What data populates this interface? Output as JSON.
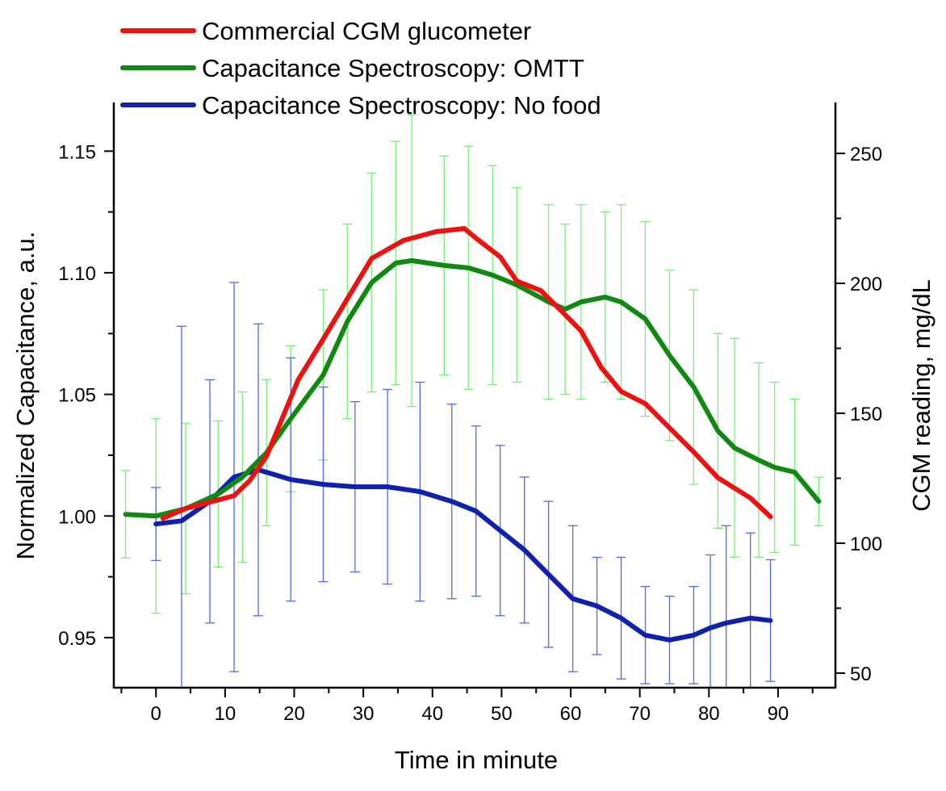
{
  "chart_data": {
    "type": "line",
    "xlabel": "Time in minute",
    "ylabel": "Normalized Capacitance, a.u.",
    "y2label": "CGM reading, mg/dL",
    "xlim": [
      -6.1,
      98.3
    ],
    "ylim": [
      0.9294,
      1.17
    ],
    "y2lim": [
      44.4,
      269.6
    ],
    "xticks": [
      0,
      10,
      20,
      30,
      40,
      50,
      60,
      70,
      80,
      90
    ],
    "yticks": [
      0.95,
      1.0,
      1.05,
      1.1,
      1.15
    ],
    "ytick_labels": [
      "0.95",
      "1.00",
      "1.05",
      "1.10",
      "1.15"
    ],
    "y2ticks": [
      50,
      100,
      150,
      200,
      250
    ],
    "grid": false,
    "legend_placement": "top-left, above plot",
    "series": [
      {
        "name": "Commercial CGM glucometer",
        "color": "#ee1111",
        "axis": "right",
        "x": [
          1,
          4.3,
          7.8,
          11.3,
          13.6,
          16,
          17.7,
          20.6,
          24.2,
          27.7,
          31.2,
          35.8,
          40.5,
          44.6,
          46.3,
          49.8,
          52.2,
          55.7,
          59.2,
          61.5,
          64.4,
          67.3,
          70.8,
          74.3,
          77.8,
          81.3,
          86,
          88.9
        ],
        "y": [
          109.6,
          113.4,
          115.8,
          118.3,
          124.2,
          133.5,
          144.4,
          163,
          178.6,
          194.1,
          209.6,
          216.5,
          219.9,
          221.1,
          217.4,
          210.2,
          200.9,
          197.2,
          187.9,
          181.7,
          167.7,
          158.4,
          153.7,
          144.4,
          135.1,
          125.2,
          117.4,
          110.2
        ]
      },
      {
        "name": "Capacitance Spectroscopy: OMTT",
        "color": "#118811",
        "error_color": "#77ee77",
        "axis": "left",
        "x": [
          -4.4,
          0,
          4.3,
          9,
          12.5,
          16,
          19.5,
          24.2,
          27.7,
          31.2,
          34.7,
          37,
          41.7,
          45.2,
          48.7,
          52.2,
          56.8,
          59.2,
          61.5,
          65,
          67.3,
          70.8,
          74.3,
          77.8,
          81.3,
          83.7,
          87.2,
          89.5,
          92.4,
          95.9
        ],
        "y": [
          1.0007,
          1.0,
          1.003,
          1.009,
          1.016,
          1.026,
          1.04,
          1.058,
          1.08,
          1.096,
          1.104,
          1.105,
          1.103,
          1.102,
          1.099,
          1.095,
          1.088,
          1.085,
          1.088,
          1.09,
          1.088,
          1.081,
          1.066,
          1.053,
          1.035,
          1.028,
          1.023,
          1.02,
          1.018,
          1.006
        ],
        "error": [
          0.018,
          0.04,
          0.035,
          0.03,
          0.035,
          0.03,
          0.03,
          0.035,
          0.04,
          0.045,
          0.05,
          0.06,
          0.045,
          0.05,
          0.045,
          0.04,
          0.04,
          0.035,
          0.04,
          0.035,
          0.04,
          0.04,
          0.035,
          0.04,
          0.04,
          0.045,
          0.04,
          0.035,
          0.03,
          0.01
        ]
      },
      {
        "name": "Capacitance Spectroscopy: No food",
        "color": "#1122aa",
        "error_color": "#5566ee",
        "axis": "left",
        "x": [
          0,
          3.7,
          7.8,
          11.3,
          14.8,
          19.5,
          24.2,
          28.8,
          33.5,
          38.2,
          42.8,
          46.3,
          49.8,
          53.3,
          56.8,
          60.3,
          63.8,
          67.3,
          70.8,
          74.3,
          77.8,
          80.2,
          82.5,
          86,
          88.9
        ],
        "y": [
          0.9967,
          0.998,
          1.006,
          1.016,
          1.019,
          1.015,
          1.013,
          1.012,
          1.012,
          1.01,
          1.006,
          1.002,
          0.994,
          0.986,
          0.976,
          0.966,
          0.963,
          0.958,
          0.951,
          0.949,
          0.951,
          0.954,
          0.956,
          0.958,
          0.957
        ],
        "error": [
          0.015,
          0.08,
          0.05,
          0.08,
          0.06,
          0.05,
          0.04,
          0.035,
          0.04,
          0.045,
          0.04,
          0.035,
          0.035,
          0.03,
          0.03,
          0.03,
          0.02,
          0.025,
          0.02,
          0.018,
          0.02,
          0.03,
          0.04,
          0.035,
          0.025
        ]
      }
    ]
  }
}
